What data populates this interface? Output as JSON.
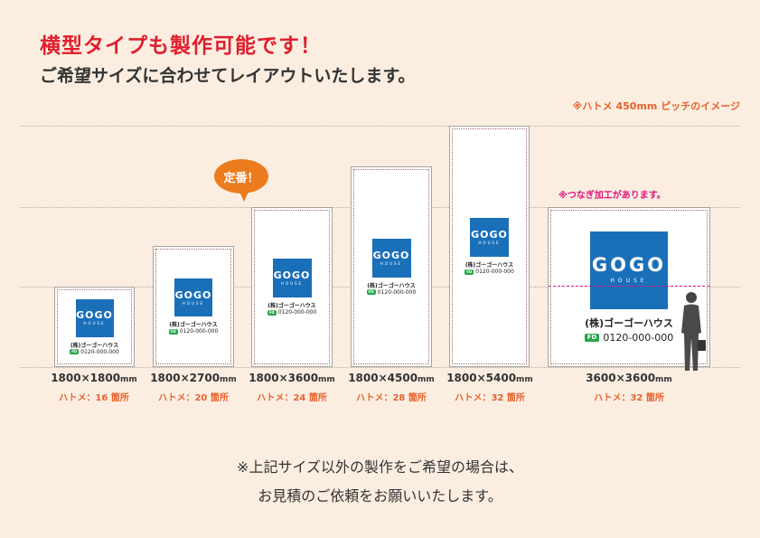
{
  "headline": "横型タイプも製作可能です！",
  "subline": "ご希望サイズに合わせてレイアウトいたします。",
  "note_pitch": "※ハトメ 450mm ピッチのイメージ",
  "bubble": "定番！",
  "note_joint": "※つなぎ加工があります。",
  "logo": {
    "wordmark": "GOGO",
    "sub": "HOUSE"
  },
  "company": "(株)ゴーゴーハウス",
  "freedial_icon": "freedial-icon",
  "tel": "0120-000-000",
  "unit": "mm",
  "banners": [
    {
      "size": "1800×1800",
      "grommets": "ハトメ：16 箇所"
    },
    {
      "size": "1800×2700",
      "grommets": "ハトメ：20 箇所"
    },
    {
      "size": "1800×3600",
      "grommets": "ハトメ：24 箇所"
    },
    {
      "size": "1800×4500",
      "grommets": "ハトメ：28 箇所"
    },
    {
      "size": "1800×5400",
      "grommets": "ハトメ：32 箇所"
    },
    {
      "size": "3600×3600",
      "grommets": "ハトメ：32 箇所"
    }
  ],
  "footer_line1": "※上記サイズ以外の製作をご希望の場合は、",
  "footer_line2": "お見積のご依頼をお願いいたします。",
  "colors": {
    "background": "#fbeee1",
    "headline": "#e01f2d",
    "accent_orange": "#e8612c",
    "logo_blue": "#1a6fb9",
    "joint_pink": "#e0137c"
  }
}
